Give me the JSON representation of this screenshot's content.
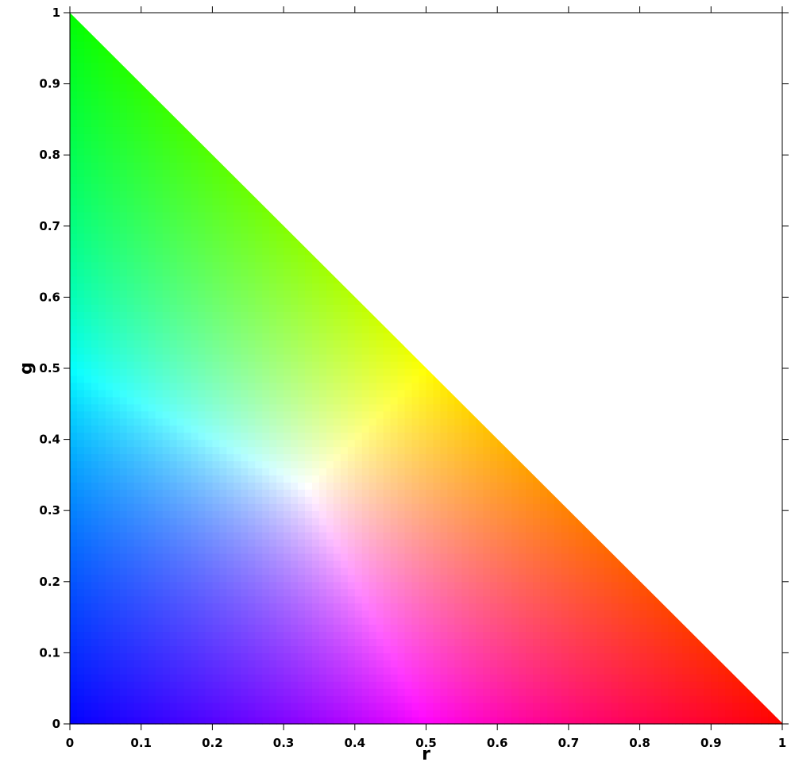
{
  "chart_data": {
    "type": "heatmap",
    "title": "",
    "xlabel": "r",
    "ylabel": "g",
    "xlim": [
      0,
      1
    ],
    "ylim": [
      0,
      1
    ],
    "xticks": [
      0,
      0.1,
      0.2,
      0.3,
      0.4,
      0.5,
      0.6,
      0.7,
      0.8,
      0.9,
      1
    ],
    "xtick_labels": [
      "0",
      "0.1",
      "0.2",
      "0.3",
      "0.4",
      "0.5",
      "0.6",
      "0.7",
      "0.8",
      "0.9",
      "1"
    ],
    "yticks": [
      0,
      0.1,
      0.2,
      0.3,
      0.4,
      0.5,
      0.6,
      0.7,
      0.8,
      0.9,
      1
    ],
    "ytick_labels": [
      "0",
      "0.1",
      "0.2",
      "0.3",
      "0.4",
      "0.5",
      "0.6",
      "0.7",
      "0.8",
      "0.9",
      "1"
    ],
    "grid": false,
    "region": "r + g <= 1",
    "vertices": [
      {
        "r": 0,
        "g": 0,
        "color": "#0000ff"
      },
      {
        "r": 1,
        "g": 0,
        "color": "#ff0000"
      },
      {
        "r": 0,
        "g": 1,
        "color": "#00ff00"
      }
    ],
    "white_point": {
      "r": 0.333,
      "g": 0.333
    }
  }
}
